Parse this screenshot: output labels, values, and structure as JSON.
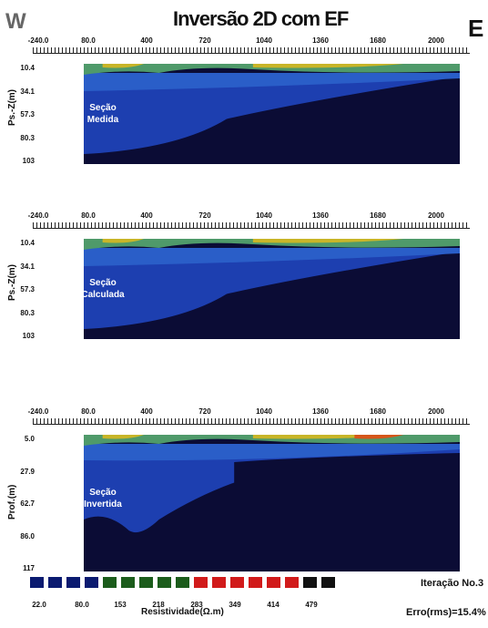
{
  "chart_data": {
    "type": "heatmap",
    "title": "Inversão 2D com EF",
    "left_label": "W",
    "right_label": "E",
    "x_ticks": [
      "-240.0",
      "80.0",
      "400",
      "720",
      "1040",
      "1360",
      "1680",
      "2000"
    ],
    "panels": [
      {
        "name": "Seção Medida",
        "label_line1": "Seção",
        "label_line2": "Medida",
        "ylabel": "Ps.-Z(m)",
        "y_ticks": [
          "10.4",
          "34.1",
          "57.3",
          "80.3",
          "103"
        ]
      },
      {
        "name": "Seção Calculada",
        "label_line1": "Seção",
        "label_line2": "Calculada",
        "ylabel": "Ps.-Z(m)",
        "y_ticks": [
          "10.4",
          "34.1",
          "57.3",
          "80.3",
          "103"
        ]
      },
      {
        "name": "Seção Invertida",
        "label_line1": "Seção",
        "label_line2": "Invertida",
        "ylabel": "Prof.(m)",
        "y_ticks": [
          "5.0",
          "27.9",
          "62.7",
          "86.0",
          "117"
        ]
      }
    ],
    "colorbar": {
      "label": "Resistividade(Ω.m)",
      "ticks": [
        "22.0",
        "80.0",
        "153",
        "218",
        "283",
        "349",
        "414",
        "479"
      ],
      "colors": [
        "#0a1a70",
        "#0a1a70",
        "#0a1a70",
        "#0a1a70",
        "#1b5c1b",
        "#1b5c1b",
        "#1b5c1b",
        "#1b5c1b",
        "#1b5c1b",
        "#d11a1a",
        "#d11a1a",
        "#d11a1a",
        "#d11a1a",
        "#d11a1a",
        "#d11a1a",
        "#111111",
        "#111111"
      ]
    },
    "iteration": "Iteração No.3",
    "error": "Erro(rms)=15.4%"
  }
}
